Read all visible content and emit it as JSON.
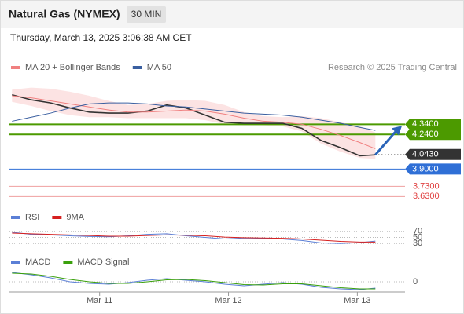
{
  "header": {
    "title": "Natural Gas (NYMEX)",
    "timeframe": "30 MIN",
    "timestamp": "Thursday, March 13, 2025 3:06:38 AM CET",
    "credit": "Research © 2025 Trading Central"
  },
  "chart_data": [
    {
      "type": "line",
      "x": [
        10.32,
        10.47,
        10.62,
        10.77,
        10.92,
        11.07,
        11.22,
        11.37,
        11.52,
        11.67,
        11.82,
        11.97,
        12.12,
        12.27,
        12.42,
        12.57,
        12.72,
        12.87,
        13.02,
        13.14
      ],
      "xlim": [
        10.3,
        13.37
      ],
      "ylim": [
        3.54,
        4.79
      ],
      "series": [
        {
          "color": "#333333",
          "values": [
            4.63,
            4.58,
            4.55,
            4.5,
            4.46,
            4.45,
            4.45,
            4.47,
            4.53,
            4.5,
            4.43,
            4.36,
            4.35,
            4.35,
            4.35,
            4.3,
            4.18,
            4.11,
            4.03,
            4.04
          ]
        },
        {
          "name": "MA 20 + Bollinger Bands",
          "color": "#f08080",
          "values": [
            4.62,
            4.6,
            4.57,
            4.54,
            4.51,
            4.48,
            4.46,
            4.46,
            4.47,
            4.48,
            4.47,
            4.44,
            4.4,
            4.37,
            4.36,
            4.34,
            4.29,
            4.23,
            4.16,
            4.1
          ],
          "upper": [
            4.68,
            4.7,
            4.69,
            4.66,
            4.62,
            4.57,
            4.53,
            4.54,
            4.57,
            4.58,
            4.57,
            4.53,
            4.46,
            4.42,
            4.41,
            4.42,
            4.4,
            4.36,
            4.32,
            4.26
          ],
          "lower": [
            4.56,
            4.52,
            4.47,
            4.43,
            4.41,
            4.41,
            4.4,
            4.4,
            4.4,
            4.4,
            4.38,
            4.34,
            4.33,
            4.33,
            4.32,
            4.27,
            4.15,
            4.07,
            4.01,
            4.0
          ]
        },
        {
          "name": "MA 50",
          "color": "#3a5fa0",
          "values": [
            4.37,
            4.41,
            4.45,
            4.5,
            4.54,
            4.55,
            4.55,
            4.54,
            4.52,
            4.51,
            4.49,
            4.47,
            4.45,
            4.44,
            4.43,
            4.41,
            4.38,
            4.35,
            4.31,
            4.28
          ]
        }
      ],
      "levels": [
        {
          "value": 4.34,
          "label": "4.3400",
          "color": "#4c9a00",
          "style": "box"
        },
        {
          "value": 4.24,
          "label": "4.2400",
          "color": "#4c9a00",
          "style": "box"
        },
        {
          "value": 4.043,
          "label": "4.0430",
          "color": "#333333",
          "style": "current"
        },
        {
          "value": 3.9,
          "label": "3.9000",
          "color": "#2f6fd6",
          "style": "box"
        },
        {
          "value": 3.73,
          "label": "3.7300",
          "color": "#e04040",
          "style": "text"
        },
        {
          "value": 3.63,
          "label": "3.6300",
          "color": "#e04040",
          "style": "text"
        }
      ]
    },
    {
      "type": "line",
      "x": [
        10.32,
        10.47,
        10.62,
        10.77,
        10.92,
        11.07,
        11.22,
        11.37,
        11.52,
        11.67,
        11.82,
        11.97,
        12.12,
        12.27,
        12.42,
        12.57,
        12.72,
        12.87,
        13.02,
        13.14
      ],
      "xlim": [
        10.3,
        13.37
      ],
      "ylim": [
        5,
        95
      ],
      "yticks": [
        70,
        50,
        30
      ],
      "series": [
        {
          "name": "RSI",
          "color": "#5b7fd6",
          "values": [
            67,
            60,
            58,
            55,
            53,
            52,
            55,
            60,
            62,
            55,
            50,
            45,
            48,
            47,
            45,
            40,
            32,
            30,
            33,
            38
          ]
        },
        {
          "name": "9MA",
          "color": "#d62020",
          "values": [
            64,
            62,
            60,
            58,
            56,
            54,
            54,
            56,
            58,
            57,
            55,
            51,
            49,
            48,
            47,
            45,
            41,
            37,
            35,
            35
          ]
        }
      ]
    },
    {
      "type": "line",
      "x": [
        10.32,
        10.47,
        10.62,
        10.77,
        10.92,
        11.07,
        11.22,
        11.37,
        11.52,
        11.67,
        11.82,
        11.97,
        12.12,
        12.27,
        12.42,
        12.57,
        12.72,
        12.87,
        13.02,
        13.14
      ],
      "xlim": [
        10.3,
        13.37
      ],
      "ylim": [
        -0.026,
        0.038
      ],
      "yticks": [
        0
      ],
      "xticks": [
        {
          "value": 11,
          "label": "Mar 11"
        },
        {
          "value": 12,
          "label": "Mar 12"
        },
        {
          "value": 13,
          "label": "Mar 13"
        }
      ],
      "series": [
        {
          "name": "MACD",
          "color": "#5b7fd6",
          "values": [
            0.024,
            0.018,
            0.01,
            0.0,
            -0.004,
            -0.006,
            -0.002,
            0.004,
            0.008,
            0.004,
            0.0,
            -0.006,
            -0.01,
            -0.006,
            -0.002,
            -0.006,
            -0.014,
            -0.018,
            -0.02,
            -0.016
          ]
        },
        {
          "name": "MACD Signal",
          "color": "#3aa00c",
          "values": [
            0.022,
            0.02,
            0.014,
            0.006,
            0.0,
            -0.004,
            -0.004,
            0.0,
            0.005,
            0.006,
            0.003,
            -0.002,
            -0.007,
            -0.008,
            -0.005,
            -0.005,
            -0.01,
            -0.015,
            -0.018,
            -0.018
          ]
        }
      ]
    }
  ]
}
